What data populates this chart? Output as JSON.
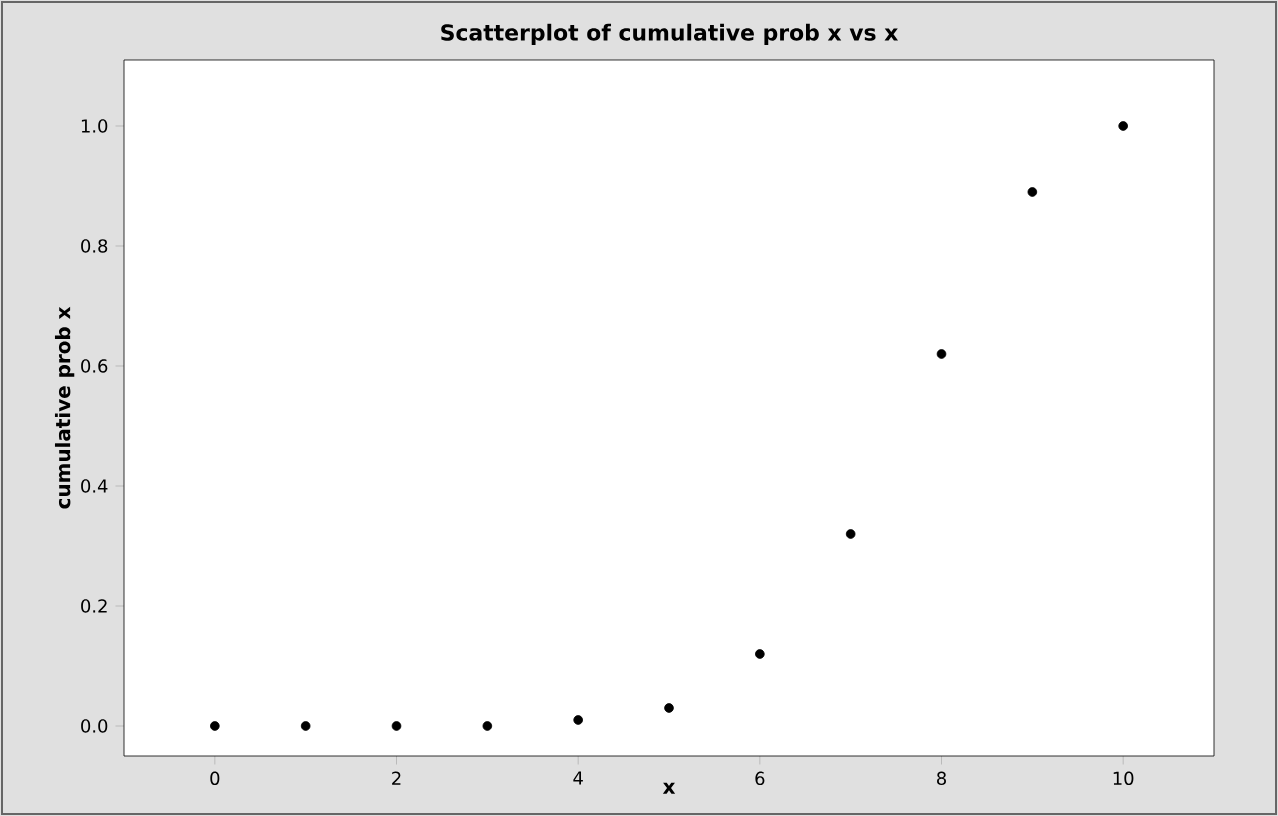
{
  "chart_data": {
    "type": "scatter",
    "title": "Scatterplot of cumulative prob x vs x",
    "xlabel": "x",
    "ylabel": "cumulative prob x",
    "x": [
      0,
      1,
      2,
      3,
      4,
      5,
      6,
      7,
      8,
      9,
      10
    ],
    "values": [
      0,
      0,
      0,
      0,
      0.01,
      0.03,
      0.12,
      0.32,
      0.62,
      0.89,
      1.0
    ],
    "color": "#000000",
    "marker": "circle",
    "xlim": [
      -1,
      11
    ],
    "ylim": [
      -0.05,
      1.11
    ],
    "xticks": [
      0,
      2,
      4,
      6,
      8,
      10
    ],
    "yticks": [
      {
        "value": 0,
        "label": "0.0"
      },
      {
        "value": 0.2,
        "label": "0.2"
      },
      {
        "value": 0.4,
        "label": "0.4"
      },
      {
        "value": 0.6,
        "label": "0.6"
      },
      {
        "value": 0.8,
        "label": "0.8"
      },
      {
        "value": 1.0,
        "label": "1.0"
      }
    ]
  }
}
